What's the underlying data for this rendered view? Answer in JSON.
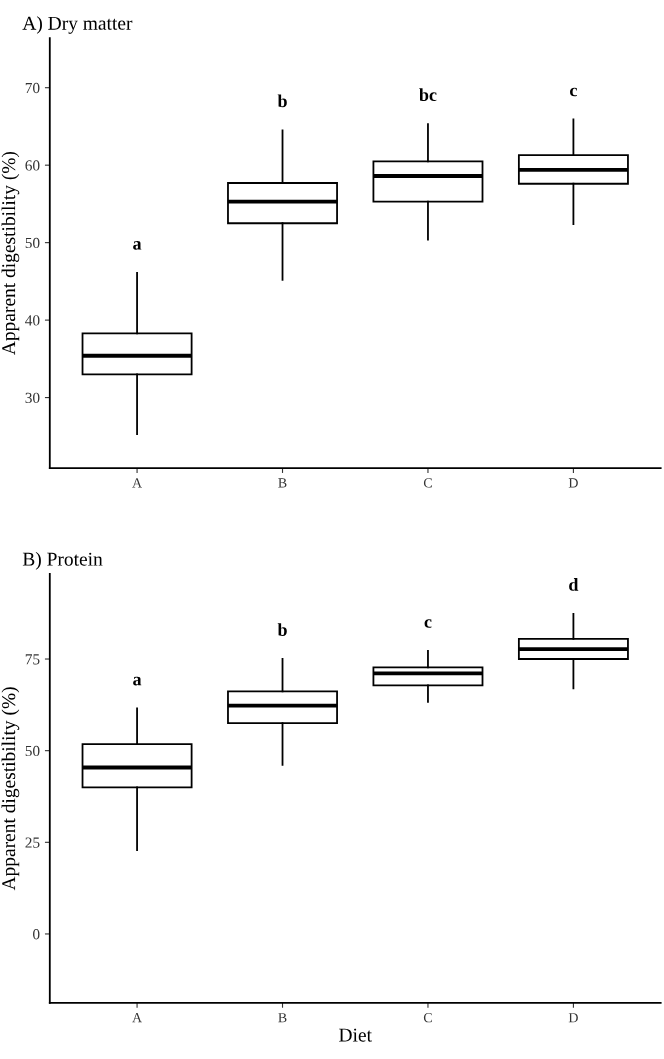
{
  "chart_data": [
    {
      "type": "box",
      "title": "A) Dry matter",
      "ylabel": "Apparent digestibility (%)",
      "categories": [
        "A",
        "B",
        "C",
        "D"
      ],
      "boxes": [
        {
          "low": 25.3,
          "q1": 33.0,
          "median": 35.4,
          "q3": 38.3,
          "high": 46.1
        },
        {
          "low": 45.2,
          "q1": 52.5,
          "median": 55.3,
          "q3": 57.7,
          "high": 64.5
        },
        {
          "low": 50.4,
          "q1": 55.3,
          "median": 58.6,
          "q3": 60.5,
          "high": 65.3
        },
        {
          "low": 52.4,
          "q1": 57.6,
          "median": 59.4,
          "q3": 61.3,
          "high": 65.9
        }
      ],
      "ylim": [
        20.9,
        76.4
      ],
      "yticks": [
        30,
        40,
        50,
        60,
        70
      ],
      "grid": false,
      "annotations": [
        "a",
        "b",
        "bc",
        "c"
      ]
    },
    {
      "type": "box",
      "title": "B) Protein",
      "xlabel": "Diet",
      "ylabel": "Apparent digestibility (%)",
      "categories": [
        "A",
        "B",
        "C",
        "D"
      ],
      "boxes": [
        {
          "low": 22.9,
          "q1": 40.0,
          "median": 45.4,
          "q3": 51.8,
          "high": 61.5
        },
        {
          "low": 46.1,
          "q1": 57.5,
          "median": 62.3,
          "q3": 66.2,
          "high": 75.0
        },
        {
          "low": 63.3,
          "q1": 67.8,
          "median": 71.1,
          "q3": 72.7,
          "high": 77.2
        },
        {
          "low": 67.0,
          "q1": 75.0,
          "median": 77.7,
          "q3": 80.5,
          "high": 87.3
        }
      ],
      "ylim": [
        -18.8,
        98.2
      ],
      "yticks": [
        0,
        25,
        50,
        75
      ],
      "grid": false,
      "annotations": [
        "a",
        "b",
        "c",
        "d"
      ]
    }
  ]
}
